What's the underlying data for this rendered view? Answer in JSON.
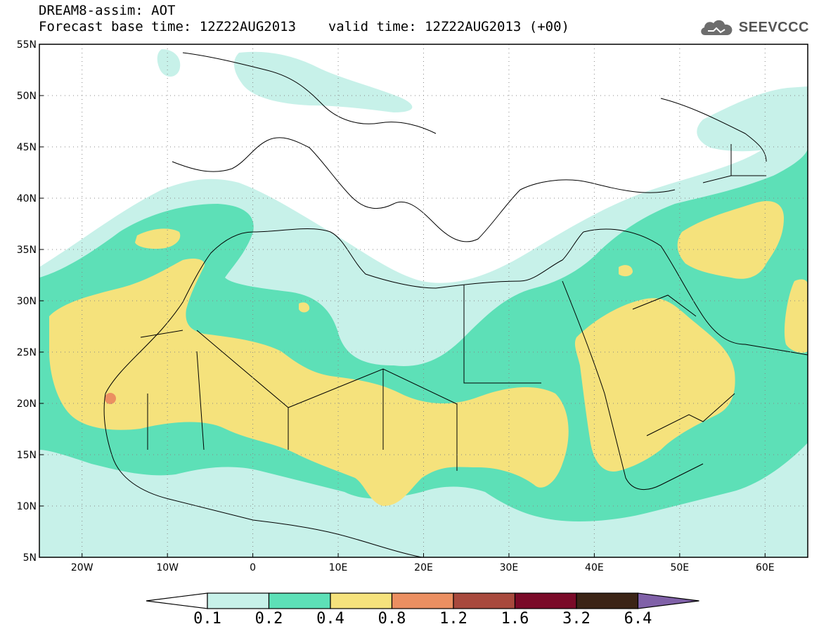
{
  "header": {
    "line1": "DREAM8-assim: AOT",
    "line2": "Forecast base time: 12Z22AUG2013",
    "line2b": "valid time: 12Z22AUG2013 (+00)"
  },
  "logo": {
    "text": "SEEVCCC",
    "icon": "cloud-icon"
  },
  "map": {
    "lon_range": [
      -25,
      65
    ],
    "lat_range": [
      5,
      55
    ],
    "lat_labels": [
      "55N",
      "50N",
      "45N",
      "40N",
      "35N",
      "30N",
      "25N",
      "20N",
      "15N",
      "10N",
      "5N"
    ],
    "lon_labels": [
      "20W",
      "10W",
      "0",
      "10E",
      "20E",
      "30E",
      "40E",
      "50E",
      "60E"
    ],
    "grid": "dotted"
  },
  "colorbar": {
    "colors": [
      "#ffffff",
      "#c7f1e9",
      "#5de0b7",
      "#f5e27c",
      "#eb8f61",
      "#a8493d",
      "#7a0a28",
      "#3b2416",
      "#8061a8"
    ],
    "labels": [
      "0.1",
      "0.2",
      "0.4",
      "0.8",
      "1.2",
      "1.6",
      "3.2",
      "6.4"
    ]
  }
}
